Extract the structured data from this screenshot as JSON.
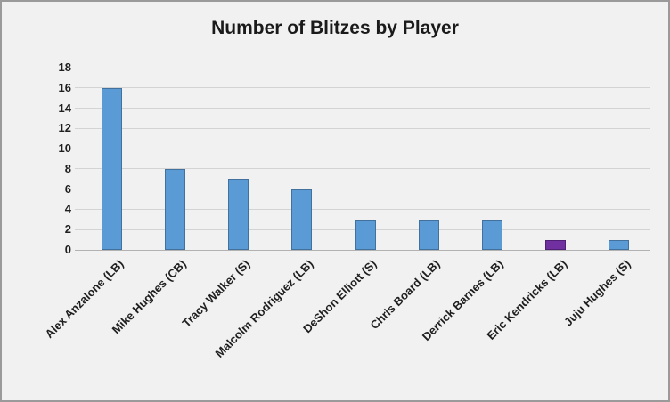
{
  "chart_data": {
    "type": "bar",
    "title": "Number of Blitzes by Player",
    "categories": [
      "Alex Anzalone (LB)",
      "Mike Hughes (CB)",
      "Tracy Walker (S)",
      "Malcolm Rodriguez (LB)",
      "DeShon Elliott (S)",
      "Chris Board (LB)",
      "Derrick Barnes (LB)",
      "Eric Kendricks (LB)",
      "Juju Hughes (S)"
    ],
    "values": [
      16,
      8,
      7,
      6,
      3,
      3,
      3,
      1,
      1
    ],
    "bar_fill_colors": [
      "#5B9BD5",
      "#5B9BD5",
      "#5B9BD5",
      "#5B9BD5",
      "#5B9BD5",
      "#5B9BD5",
      "#5B9BD5",
      "#7030A0",
      "#5B9BD5"
    ],
    "bar_border_colors": [
      "#41719C",
      "#41719C",
      "#41719C",
      "#41719C",
      "#41719C",
      "#41719C",
      "#41719C",
      "#4F2075",
      "#41719C"
    ],
    "xlabel": "",
    "ylabel": "",
    "ylim": [
      0,
      18
    ],
    "ytick_step": 2,
    "grid": true,
    "legend_position": "none",
    "colors": {
      "background": "#F1F1F1",
      "frame_border": "#9A9A9A",
      "gridline": "#D3D3D3",
      "axis_line": "#B2B2B2",
      "text": "#1F1F1F",
      "default_bar": "#5B9BD5",
      "highlight_bar": "#7030A0"
    }
  }
}
